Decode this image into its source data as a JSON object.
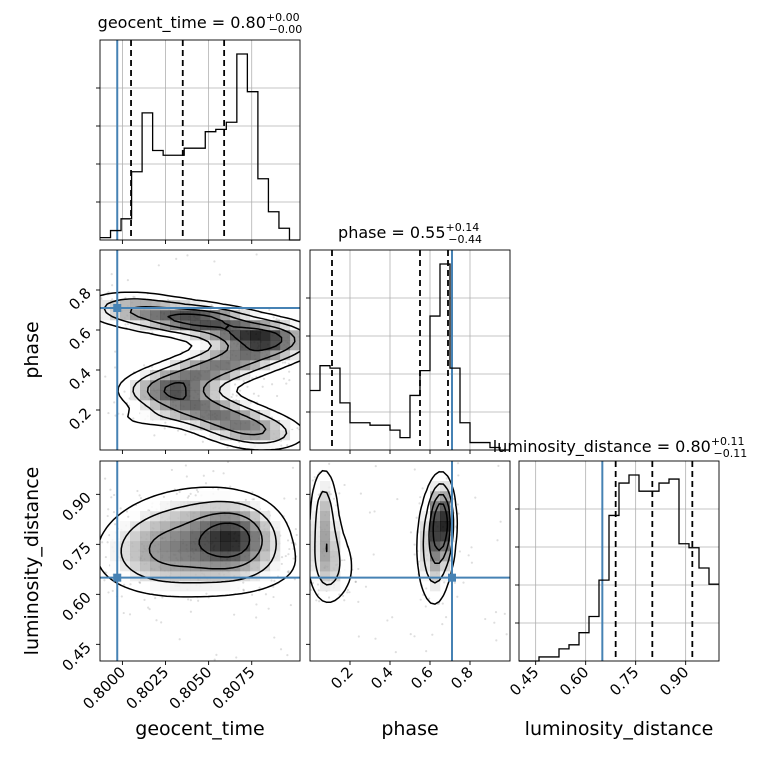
{
  "chart_data": {
    "type": "corner",
    "truth_color": "#4682b4",
    "parameters": [
      {
        "key": "geocent_time",
        "label": "geocent_time",
        "range": [
          0.7987,
          0.8103
        ],
        "truth": 0.7997,
        "ticks": [
          0.8,
          0.8025,
          0.805,
          0.8075
        ],
        "tick_labels": [
          "0.8000",
          "0.8025",
          "0.8050",
          "0.8075"
        ],
        "title_main": "geocent_time = 0.80",
        "title_sup": "+0.00",
        "title_sub": "−0.00",
        "quantiles": [
          0.8005,
          0.8035,
          0.8059
        ],
        "hist": [
          1,
          4,
          9,
          29,
          54,
          38,
          36,
          36,
          39,
          39,
          46,
          47,
          50,
          79,
          63,
          26,
          12,
          5,
          0
        ]
      },
      {
        "key": "phase",
        "label": "phase",
        "range": [
          0.0,
          1.0
        ],
        "truth": 0.71,
        "ticks": [
          0.2,
          0.4,
          0.6,
          0.8
        ],
        "tick_labels": [
          "0.2",
          "0.4",
          "0.6",
          "0.8"
        ],
        "title_main": "phase = 0.55",
        "title_sup": "+0.14",
        "title_sub": "−0.44",
        "quantiles": [
          0.11,
          0.55,
          0.69
        ],
        "hist": [
          24,
          34,
          33,
          19,
          11,
          11,
          10,
          10,
          8,
          5,
          22,
          32,
          54,
          75,
          33,
          11,
          3,
          3,
          1,
          0
        ]
      },
      {
        "key": "luminosity_distance",
        "label": "luminosity_distance",
        "range": [
          0.4,
          1.0
        ],
        "truth": 0.65,
        "ticks": [
          0.45,
          0.6,
          0.75,
          0.9
        ],
        "tick_labels": [
          "0.45",
          "0.60",
          "0.75",
          "0.90"
        ],
        "title_main": "luminosity_distance = 0.80",
        "title_sup": "+0.11",
        "title_sub": "−0.11",
        "quantiles": [
          0.69,
          0.8,
          0.92
        ],
        "hist": [
          0,
          0,
          1,
          1,
          3,
          4,
          7,
          11,
          20,
          36,
          44,
          46,
          42,
          42,
          44,
          45,
          29,
          28,
          23,
          19
        ]
      }
    ]
  }
}
